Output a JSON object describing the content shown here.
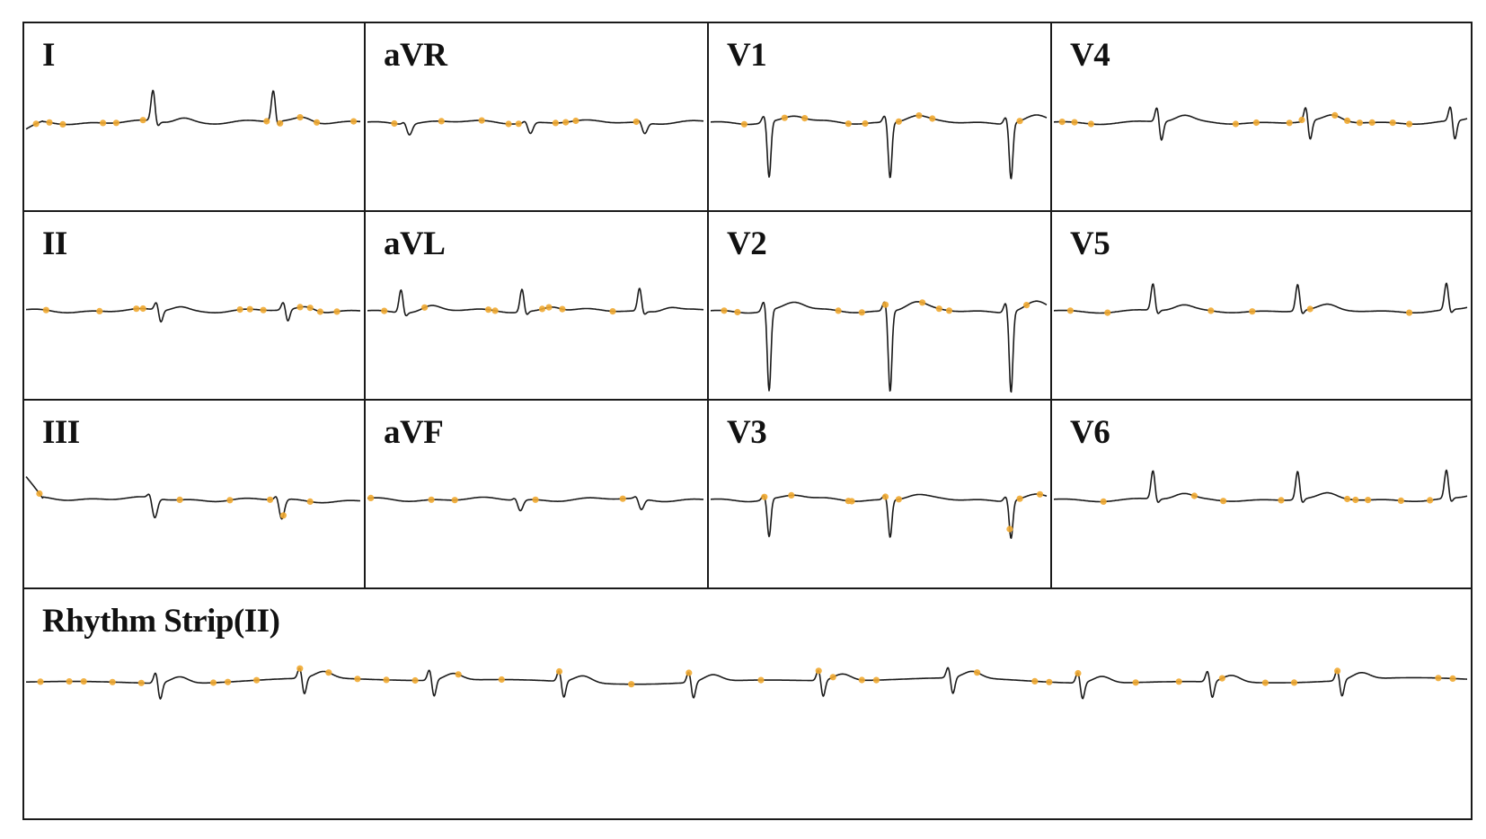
{
  "colors": {
    "trace": "#1a1a1a",
    "marker": "#f0a830",
    "border": "#1a1a1a",
    "background": "#ffffff"
  },
  "chart_data": {
    "type": "line",
    "grid": "3x4 lead panels plus full-width rhythm strip",
    "leads": [
      {
        "name": "I",
        "morph": "upright",
        "beats": [
          0.38,
          0.74
        ],
        "amp": 0.35,
        "baseline_tilt": 0.03,
        "markers": [
          0.03,
          0.07,
          0.11,
          0.23,
          0.27,
          0.35,
          0.72,
          0.76,
          0.82,
          0.87,
          0.98
        ]
      },
      {
        "name": "aVR",
        "morph": "inverted-small",
        "beats": [
          0.12,
          0.48,
          0.82
        ],
        "amp": 0.12,
        "markers": [
          0.08,
          0.22,
          0.34,
          0.42,
          0.45,
          0.56,
          0.59,
          0.62,
          0.8
        ]
      },
      {
        "name": "V1",
        "morph": "deep-s",
        "beats": [
          0.17,
          0.53,
          0.89
        ],
        "amp": 0.62,
        "markers": [
          0.1,
          0.22,
          0.28,
          0.41,
          0.46,
          0.56,
          0.62,
          0.66,
          0.92
        ]
      },
      {
        "name": "V4",
        "morph": "rs",
        "beats": [
          0.25,
          0.61,
          0.96
        ],
        "amp": 0.25,
        "markers": [
          0.02,
          0.05,
          0.09,
          0.44,
          0.49,
          0.57,
          0.6,
          0.68,
          0.71,
          0.74,
          0.77,
          0.82,
          0.86
        ]
      },
      {
        "name": "II",
        "morph": "rs-small",
        "beats": [
          0.39,
          0.77
        ],
        "amp": 0.15,
        "markers": [
          0.06,
          0.22,
          0.33,
          0.35,
          0.64,
          0.67,
          0.71,
          0.82,
          0.85,
          0.88,
          0.93
        ]
      },
      {
        "name": "aVL",
        "morph": "upright",
        "beats": [
          0.1,
          0.46,
          0.81
        ],
        "amp": 0.26,
        "markers": [
          0.05,
          0.17,
          0.36,
          0.38,
          0.52,
          0.54,
          0.58,
          0.73
        ]
      },
      {
        "name": "V2",
        "morph": "deep-s",
        "beats": [
          0.17,
          0.53,
          0.89
        ],
        "amp": 0.9,
        "markers": [
          0.04,
          0.08,
          0.38,
          0.45,
          0.52,
          0.63,
          0.68,
          0.71,
          0.94
        ]
      },
      {
        "name": "V5",
        "morph": "upright",
        "beats": [
          0.24,
          0.59,
          0.95
        ],
        "amp": 0.3,
        "markers": [
          0.04,
          0.13,
          0.38,
          0.48,
          0.62,
          0.86
        ]
      },
      {
        "name": "III",
        "morph": "inverted-small",
        "beats": [
          0.38,
          0.76
        ],
        "amp": 0.22,
        "baseline_tilt": -0.08,
        "markers": [
          0.04,
          0.46,
          0.61,
          0.73,
          0.77,
          0.85
        ]
      },
      {
        "name": "aVF",
        "morph": "inverted-small",
        "beats": [
          0.45,
          0.81
        ],
        "amp": 0.12,
        "markers": [
          0.01,
          0.19,
          0.26,
          0.5,
          0.76
        ]
      },
      {
        "name": "V3",
        "morph": "deep-s",
        "beats": [
          0.17,
          0.53,
          0.89
        ],
        "amp": 0.42,
        "markers": [
          0.16,
          0.24,
          0.41,
          0.42,
          0.52,
          0.56,
          0.89,
          0.92,
          0.98
        ]
      },
      {
        "name": "V6",
        "morph": "upright",
        "beats": [
          0.24,
          0.59,
          0.95
        ],
        "amp": 0.32,
        "markers": [
          0.12,
          0.34,
          0.41,
          0.55,
          0.71,
          0.73,
          0.76,
          0.84,
          0.91
        ]
      }
    ],
    "rhythm_strip": {
      "name": "Rhythm Strip(II)",
      "morph": "rs-small",
      "beats": [
        0.09,
        0.19,
        0.28,
        0.37,
        0.46,
        0.55,
        0.64,
        0.73,
        0.82,
        0.91
      ],
      "amp": 0.14,
      "markers": [
        0.01,
        0.03,
        0.04,
        0.06,
        0.08,
        0.13,
        0.14,
        0.16,
        0.19,
        0.21,
        0.23,
        0.25,
        0.27,
        0.3,
        0.33,
        0.37,
        0.42,
        0.46,
        0.51,
        0.55,
        0.56,
        0.58,
        0.59,
        0.66,
        0.7,
        0.71,
        0.73,
        0.77,
        0.8,
        0.83,
        0.86,
        0.88,
        0.91,
        0.98,
        0.99
      ]
    }
  }
}
